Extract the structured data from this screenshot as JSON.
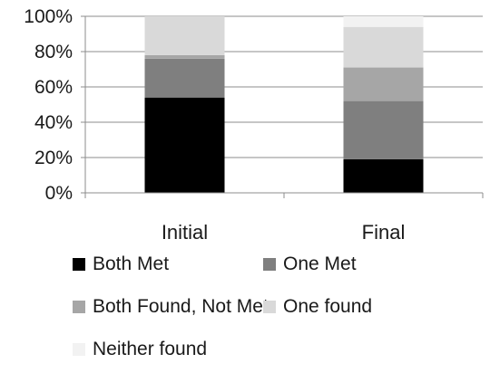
{
  "chart_data": {
    "type": "bar",
    "stacked": true,
    "percent": true,
    "title": "",
    "xlabel": "",
    "ylabel": "",
    "ylim": [
      0,
      100
    ],
    "ytick_labels": [
      "0%",
      "20%",
      "40%",
      "60%",
      "80%",
      "100%"
    ],
    "yticks": [
      0,
      20,
      40,
      60,
      80,
      100
    ],
    "categories": [
      "Initial",
      "Final"
    ],
    "grid": true,
    "legend_position": "bottom",
    "series": [
      {
        "name": "Both Met",
        "values": [
          54,
          19
        ],
        "color": "#000000"
      },
      {
        "name": "One Met",
        "values": [
          22,
          33
        ],
        "color": "#7f7f7f"
      },
      {
        "name": "Both Found, Not Met",
        "values": [
          2,
          19
        ],
        "color": "#a6a6a6"
      },
      {
        "name": "One found",
        "values": [
          22,
          23
        ],
        "color": "#d9d9d9"
      },
      {
        "name": "Neither found",
        "values": [
          0,
          6
        ],
        "color": "#f2f2f2"
      }
    ]
  }
}
